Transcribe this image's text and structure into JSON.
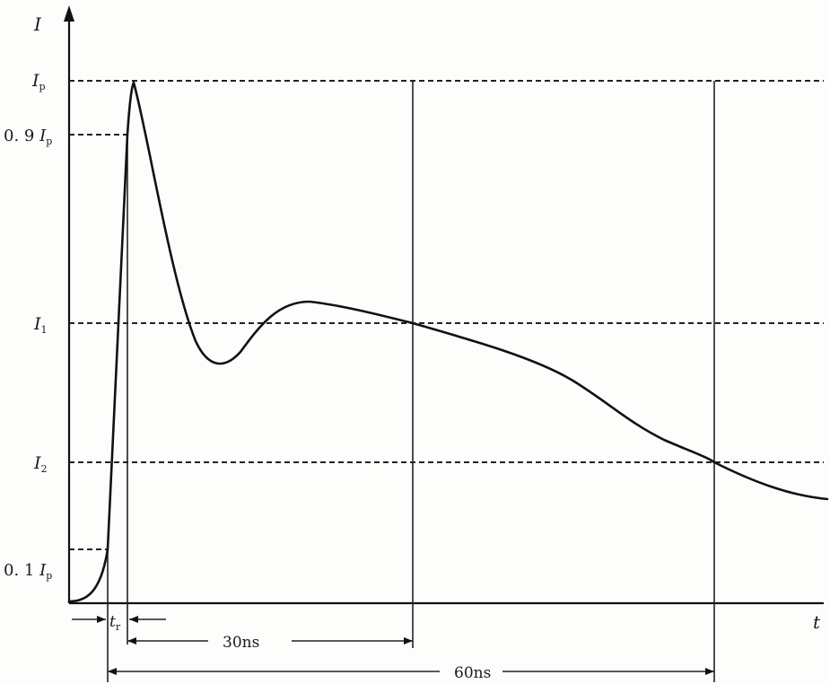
{
  "axes": {
    "y_label": "I",
    "x_label": "t"
  },
  "levels": {
    "ip": {
      "main": "I",
      "sub": "p"
    },
    "ninety": {
      "prefix": "0. 9 ",
      "main": "I",
      "sub": "p"
    },
    "i1": {
      "main": "I",
      "sub": "1"
    },
    "i2": {
      "main": "I",
      "sub": "2"
    },
    "ten": {
      "prefix": "0. 1 ",
      "main": "I",
      "sub": "p"
    }
  },
  "intervals": {
    "rise": {
      "main": "t",
      "sub": "r"
    },
    "thirty": "30ns",
    "sixty": "60ns"
  },
  "colors": {
    "ink": "#111111",
    "paper": "#fdfdfb"
  }
}
